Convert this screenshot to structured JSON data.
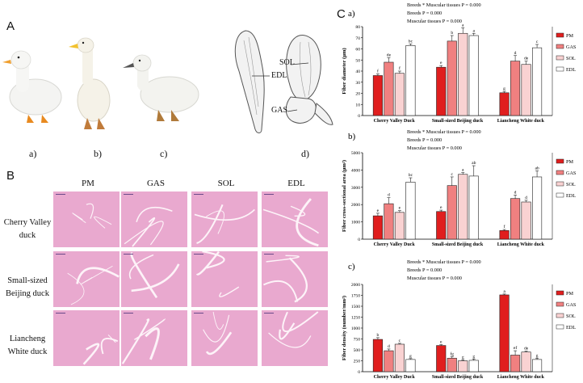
{
  "panel_a": {
    "letter": "A",
    "labels": [
      "a)",
      "b)",
      "c)",
      "d)"
    ],
    "muscle_labels": {
      "edl": "EDL",
      "sol": "SOL",
      "gas": "GAS"
    }
  },
  "panel_b": {
    "letter": "B",
    "columns": [
      "PM",
      "GAS",
      "SOL",
      "EDL"
    ],
    "rows": [
      {
        "line1": "Cherry Valley",
        "line2": "duck"
      },
      {
        "line1": "Small-sized",
        "line2": "Beijing duck"
      },
      {
        "line1": "Liancheng",
        "line2": "White duck"
      }
    ]
  },
  "panel_c": {
    "letter": "C"
  },
  "colors": {
    "PM": "#e01e1e",
    "GAS": "#f08080",
    "SOL": "#f9d2d2",
    "EDL": "#ffffff",
    "hist": "#e9a9cf"
  },
  "chart_data": [
    {
      "type": "bar",
      "sub": "a)",
      "stats": [
        "Breeds * Muscular tissues  P = 0.000",
        "Breeds    P = 0.000",
        "Muscular tissues  P = 0.000"
      ],
      "ylabel": "Fiber diameter (μm)",
      "ylim": [
        0,
        80
      ],
      "yticks": [
        "0",
        "10",
        "20",
        "30",
        "40",
        "50",
        "60",
        "70",
        "80"
      ],
      "categories": [
        "Cherry Valley Duck",
        "Small-sized Beijing duck",
        "Liancheng White duck"
      ],
      "series": [
        {
          "name": "PM",
          "values": [
            36,
            43.5,
            20.5
          ],
          "errors": [
            1.5,
            1.5,
            1.2
          ],
          "labels": [
            "f",
            "e",
            "g"
          ]
        },
        {
          "name": "GAS",
          "values": [
            48,
            67,
            49
          ],
          "errors": [
            4,
            5,
            5
          ],
          "labels": [
            "de",
            "b",
            "d"
          ]
        },
        {
          "name": "SOL",
          "values": [
            38,
            74,
            46
          ],
          "errors": [
            2,
            5,
            3
          ],
          "labels": [
            "f",
            "a",
            "de"
          ]
        },
        {
          "name": "EDL",
          "values": [
            63,
            72,
            61
          ],
          "errors": [
            1.5,
            2,
            3
          ],
          "labels": [
            "bc",
            "a",
            "c"
          ]
        }
      ],
      "legend": "right"
    },
    {
      "type": "bar",
      "sub": "b)",
      "stats": [
        "Breeds * Muscular tissues  P = 0.000",
        "Breeds    P = 0.000",
        "Muscular tissues  P = 0.000"
      ],
      "ylabel": "Fiber cross-sectional area (μm²)",
      "ylim": [
        0,
        5000
      ],
      "yticks": [
        "0",
        "1000",
        "2000",
        "3000",
        "4000",
        "5000"
      ],
      "categories": [
        "Cherry Valley Duck",
        "Small-sized Beijing duck",
        "Liancheng White duck"
      ],
      "series": [
        {
          "name": "PM",
          "values": [
            1350,
            1600,
            500
          ],
          "errors": [
            150,
            80,
            60
          ],
          "labels": [
            "e",
            "e",
            "f"
          ]
        },
        {
          "name": "GAS",
          "values": [
            2050,
            3100,
            2350
          ],
          "errors": [
            350,
            500,
            200
          ],
          "labels": [
            "d",
            "c",
            "d"
          ]
        },
        {
          "name": "SOL",
          "values": [
            1550,
            3750,
            2150
          ],
          "errors": [
            100,
            100,
            100
          ],
          "labels": [
            "e",
            "a",
            "d"
          ]
        },
        {
          "name": "EDL",
          "values": [
            3300,
            3650,
            3600
          ],
          "errors": [
            250,
            600,
            350
          ],
          "labels": [
            "bc",
            "ab",
            "ab"
          ]
        }
      ],
      "legend": "right"
    },
    {
      "type": "bar",
      "sub": "c)",
      "stats": [
        "Breeds * Muscular tissues  P = 0.000",
        "Breeds      P = 0.000",
        "Muscular tissues  P = 0.000"
      ],
      "ylabel": "Fiber density (number/mm²)",
      "ylim": [
        0,
        2000
      ],
      "yticks": [
        "0",
        "250",
        "500",
        "750",
        "1000",
        "1250",
        "1500",
        "1750",
        "2000"
      ],
      "categories": [
        "Cherry Valley Duck",
        "Small-sized Beijing duck",
        "Liancheng White duck"
      ],
      "series": [
        {
          "name": "PM",
          "values": [
            740,
            600,
            1760
          ],
          "errors": [
            40,
            20,
            20
          ],
          "labels": [
            "b",
            "e",
            "a"
          ]
        },
        {
          "name": "GAS",
          "values": [
            480,
            310,
            380
          ],
          "errors": [
            40,
            30,
            100
          ],
          "labels": [
            "d",
            "fg",
            "ef"
          ]
        },
        {
          "name": "SOL",
          "values": [
            630,
            250,
            450
          ],
          "errors": [
            20,
            20,
            20
          ],
          "labels": [
            "c",
            "g",
            "de"
          ]
        },
        {
          "name": "EDL",
          "values": [
            280,
            260,
            280
          ],
          "errors": [
            20,
            30,
            30
          ],
          "labels": [
            "g",
            "g",
            "g"
          ]
        }
      ],
      "legend": "right"
    }
  ]
}
